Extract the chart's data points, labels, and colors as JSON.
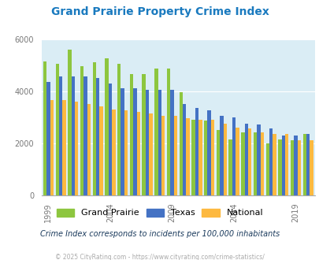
{
  "title": "Grand Prairie Property Crime Index",
  "subtitle": "Crime Index corresponds to incidents per 100,000 inhabitants",
  "footer": "© 2025 CityRating.com - https://www.cityrating.com/crime-statistics/",
  "years": [
    1999,
    2000,
    2001,
    2002,
    2003,
    2004,
    2005,
    2006,
    2007,
    2008,
    2009,
    2010,
    2011,
    2012,
    2013,
    2014,
    2015,
    2016,
    2017,
    2018,
    2019,
    2020
  ],
  "grand_prairie": [
    5150,
    5050,
    5600,
    4950,
    5100,
    5250,
    5050,
    4650,
    4650,
    4850,
    4850,
    3950,
    2900,
    2850,
    2500,
    2150,
    2400,
    2400,
    2000,
    2150,
    2100,
    2350
  ],
  "texas": [
    4350,
    4550,
    4550,
    4550,
    4500,
    4300,
    4100,
    4100,
    4050,
    4050,
    4050,
    3500,
    3350,
    3250,
    3050,
    3000,
    2750,
    2700,
    2550,
    2300,
    2300,
    2350
  ],
  "national": [
    3650,
    3650,
    3600,
    3500,
    3400,
    3300,
    3250,
    3200,
    3150,
    3050,
    3050,
    2950,
    2900,
    2900,
    2750,
    2600,
    2550,
    2400,
    2350,
    2350,
    2100,
    2100
  ],
  "gp_color": "#8dc63f",
  "tx_color": "#4472c4",
  "nat_color": "#fdb940",
  "bg_color": "#daedf5",
  "ylim": [
    0,
    6000
  ],
  "yticks": [
    0,
    2000,
    4000,
    6000
  ],
  "title_color": "#1a7abf",
  "subtitle_color": "#1a3a5c",
  "footer_color": "#aaaaaa",
  "bar_width": 0.28
}
